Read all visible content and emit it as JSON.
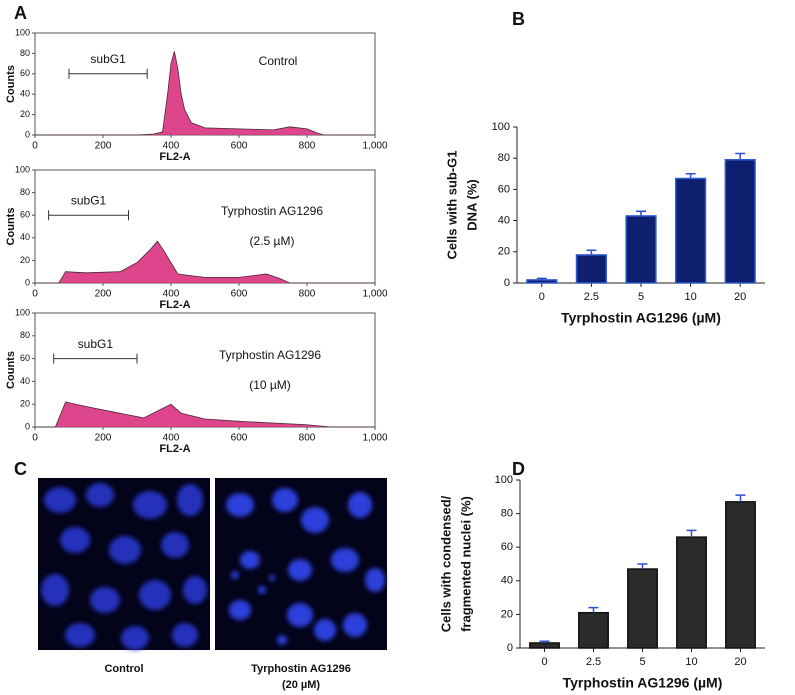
{
  "panel_labels": [
    "A",
    "B",
    "C",
    "D"
  ],
  "images": {
    "labels": [
      "Control",
      "Tyrphostin AG1296",
      "(20 µM)"
    ]
  },
  "chart_data": [
    {
      "type": "area",
      "xlabel": "FL2-A",
      "ylabel": "Counts",
      "color": "#d9327f",
      "edge": "#4a2a35",
      "x": [
        0,
        100,
        200,
        300,
        350,
        375,
        390,
        400,
        410,
        420,
        430,
        440,
        460,
        500,
        600,
        700,
        750,
        800,
        830,
        850,
        1000
      ],
      "values": [
        0,
        0,
        0,
        0,
        1,
        3,
        40,
        70,
        82,
        65,
        40,
        25,
        12,
        7,
        6,
        5,
        8,
        6,
        2,
        0,
        0
      ],
      "xlim": [
        0,
        1000
      ],
      "xticks": [
        0,
        200,
        400,
        600,
        800,
        {
          "value": 1000,
          "label": "1,000"
        }
      ],
      "ylim": [
        0,
        100
      ],
      "yticks": [
        0,
        20,
        40,
        60,
        80,
        100
      ],
      "bracket": {
        "label": "subG1",
        "range": [
          100,
          330
        ]
      },
      "annotations": [
        "Control"
      ]
    },
    {
      "type": "area",
      "xlabel": "FL2-A",
      "ylabel": "Counts",
      "color": "#d9327f",
      "edge": "#4a2a35",
      "x": [
        0,
        70,
        90,
        150,
        250,
        300,
        340,
        360,
        380,
        420,
        500,
        600,
        680,
        720,
        750,
        1000
      ],
      "values": [
        0,
        0,
        10,
        9,
        10,
        18,
        30,
        37,
        28,
        8,
        5,
        5,
        8,
        4,
        0,
        0
      ],
      "xlim": [
        0,
        1000
      ],
      "xticks": [
        0,
        200,
        400,
        600,
        800,
        {
          "value": 1000,
          "label": "1,000"
        }
      ],
      "ylim": [
        0,
        100
      ],
      "yticks": [
        0,
        20,
        40,
        60,
        80,
        100
      ],
      "bracket": {
        "label": "subG1",
        "range": [
          40,
          275
        ]
      },
      "annotations": [
        "Tyrphostin AG1296",
        "(2.5 µM)"
      ]
    },
    {
      "type": "area",
      "xlabel": "FL2-A",
      "ylabel": "Counts",
      "color": "#d9327f",
      "edge": "#4a2a35",
      "x": [
        0,
        60,
        90,
        150,
        250,
        320,
        380,
        400,
        430,
        500,
        600,
        800,
        870,
        1000
      ],
      "values": [
        0,
        0,
        22,
        18,
        12,
        8,
        17,
        20,
        12,
        7,
        5,
        2,
        0,
        0
      ],
      "xlim": [
        0,
        1000
      ],
      "xticks": [
        0,
        200,
        400,
        600,
        800,
        {
          "value": 1000,
          "label": "1,000"
        }
      ],
      "ylim": [
        0,
        100
      ],
      "yticks": [
        0,
        20,
        40,
        60,
        80,
        100
      ],
      "bracket": {
        "label": "subG1",
        "range": [
          55,
          300
        ]
      },
      "annotations": [
        "Tyrphostin AG1296",
        "(10 µM)"
      ]
    },
    {
      "type": "bar",
      "categories": [
        "0",
        "2.5",
        "5",
        "10",
        "20"
      ],
      "values": [
        2,
        18,
        43,
        67,
        79
      ],
      "errors": [
        1,
        3,
        3,
        3,
        4
      ],
      "color": "#0d1f6e",
      "edge": "#2f5ad0",
      "error_color": "#2f4fd0",
      "ylim": [
        0,
        100
      ],
      "yticks": [
        0,
        20,
        40,
        60,
        80,
        100
      ],
      "xlabel": "Tyrphostin AG1296 (µM)",
      "ylabel": [
        "Cells with sub-G1",
        "DNA (%)"
      ]
    },
    {
      "type": "bar",
      "categories": [
        "0",
        "2.5",
        "5",
        "10",
        "20"
      ],
      "values": [
        3,
        21,
        47,
        66,
        87
      ],
      "errors": [
        1,
        3,
        3,
        4,
        4
      ],
      "color": "#2b2b2b",
      "edge": "#111111",
      "error_color": "#2f4fd0",
      "ylim": [
        0,
        100
      ],
      "yticks": [
        0,
        20,
        40,
        60,
        80,
        100
      ],
      "xlabel": "Tyrphostin AG1296 (µM)",
      "ylabel": [
        "Cells with condensed/",
        "fragmented nuclei (%)"
      ]
    }
  ]
}
